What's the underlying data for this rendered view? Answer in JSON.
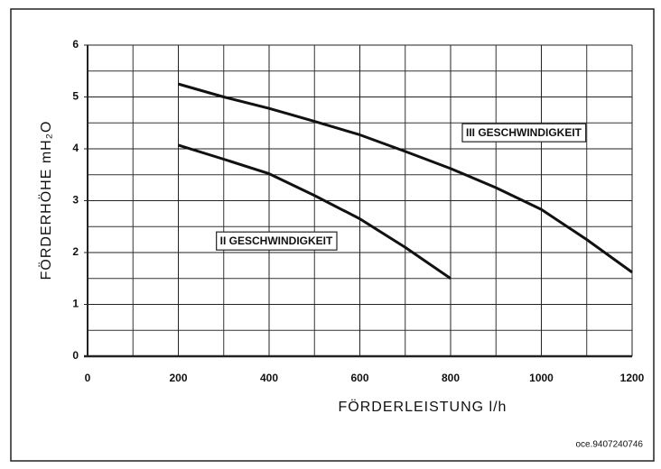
{
  "chart_data": {
    "type": "line",
    "xlabel": "FÖRDERLEISTUNG l/h",
    "ylabel": "FÖRDERHÖHE mH₂O",
    "footnote": "oce.9407240746",
    "xlim": [
      0,
      1200
    ],
    "ylim": [
      0,
      6
    ],
    "xticks": [
      0,
      200,
      400,
      600,
      800,
      1000,
      1200
    ],
    "yticks": [
      0,
      1,
      2,
      3,
      4,
      5,
      6
    ],
    "x_minor_ticks": [
      100,
      300,
      500,
      700,
      900,
      1100
    ],
    "y_minor_ticks": [
      0.5,
      1.5,
      2.5,
      3.5,
      4.5,
      5.5
    ],
    "grid": true,
    "series": [
      {
        "name": "II GESCHWINDIGKEIT",
        "color": "#111111",
        "x": [
          200,
          300,
          400,
          500,
          600,
          700,
          800
        ],
        "values": [
          4.07,
          3.8,
          3.52,
          3.1,
          2.65,
          2.1,
          1.5
        ]
      },
      {
        "name": "III GESCHWINDIGKEIT",
        "color": "#111111",
        "x": [
          200,
          300,
          400,
          500,
          600,
          700,
          800,
          900,
          1000,
          1100,
          1200
        ],
        "values": [
          5.25,
          5.0,
          4.78,
          4.53,
          4.27,
          3.95,
          3.62,
          3.25,
          2.83,
          2.25,
          1.62
        ]
      }
    ]
  }
}
